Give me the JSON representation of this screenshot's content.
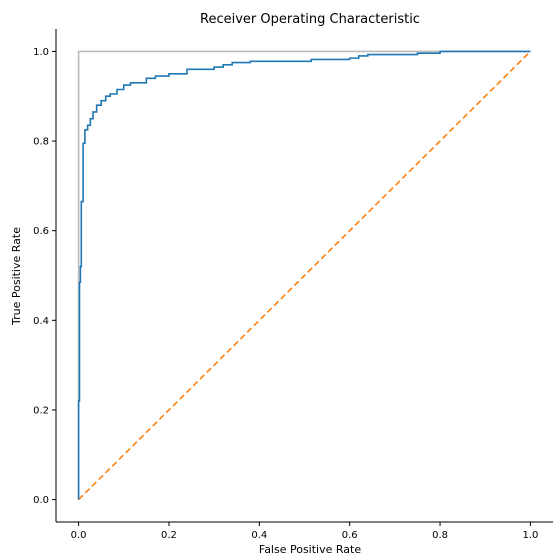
{
  "chart_data": {
    "type": "line",
    "title": "Receiver Operating Characteristic",
    "xlabel": "False Positive Rate",
    "ylabel": "True Positive Rate",
    "xlim": [
      -0.05,
      1.05
    ],
    "ylim": [
      -0.05,
      1.05
    ],
    "xticks": [
      "0.0",
      "0.2",
      "0.4",
      "0.6",
      "0.8",
      "1.0"
    ],
    "yticks": [
      "0.0",
      "0.2",
      "0.4",
      "0.6",
      "0.8",
      "1.0"
    ],
    "grid": false,
    "legend": "none",
    "series": [
      {
        "style": "solid",
        "color": "#1f77b4",
        "x": [
          0.0,
          0.0,
          0.002,
          0.002,
          0.004,
          0.004,
          0.006,
          0.006,
          0.01,
          0.01,
          0.014,
          0.014,
          0.02,
          0.02,
          0.026,
          0.026,
          0.032,
          0.032,
          0.04,
          0.04,
          0.05,
          0.05,
          0.06,
          0.06,
          0.07,
          0.07,
          0.085,
          0.085,
          0.1,
          0.1,
          0.115,
          0.115,
          0.15,
          0.15,
          0.17,
          0.17,
          0.2,
          0.2,
          0.24,
          0.24,
          0.3,
          0.3,
          0.32,
          0.32,
          0.34,
          0.34,
          0.38,
          0.38,
          0.515,
          0.515,
          0.6,
          0.6,
          0.62,
          0.62,
          0.64,
          0.64,
          0.75,
          0.75,
          0.8,
          0.8,
          1.0
        ],
        "y": [
          0.0,
          0.22,
          0.22,
          0.485,
          0.485,
          0.52,
          0.52,
          0.665,
          0.665,
          0.795,
          0.795,
          0.825,
          0.825,
          0.835,
          0.835,
          0.85,
          0.85,
          0.865,
          0.865,
          0.88,
          0.88,
          0.89,
          0.89,
          0.9,
          0.9,
          0.905,
          0.905,
          0.915,
          0.915,
          0.925,
          0.925,
          0.93,
          0.93,
          0.94,
          0.94,
          0.945,
          0.945,
          0.95,
          0.95,
          0.96,
          0.96,
          0.965,
          0.965,
          0.97,
          0.97,
          0.975,
          0.975,
          0.978,
          0.978,
          0.982,
          0.982,
          0.985,
          0.985,
          0.99,
          0.99,
          0.993,
          0.993,
          0.996,
          0.996,
          1.0,
          1.0
        ]
      },
      {
        "style": "dashed",
        "color": "#ff7f0e",
        "x": [
          0.0,
          1.0
        ],
        "y": [
          0.0,
          1.0
        ]
      },
      {
        "style": "solid",
        "color": "#bcbcbc",
        "x": [
          0.0,
          0.0,
          1.0
        ],
        "y": [
          0.0,
          1.0,
          1.0
        ]
      }
    ]
  }
}
